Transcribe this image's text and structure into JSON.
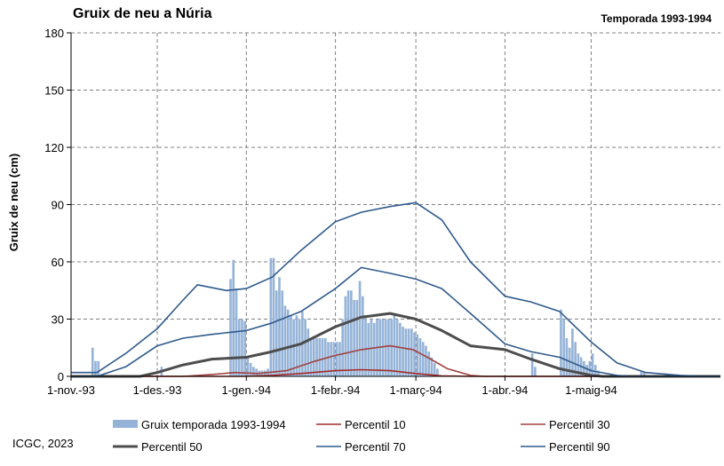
{
  "title": "Gruix de neu a Núria",
  "subtitle": "Temporada 1993-1994",
  "credit": "ICGC, 2023",
  "colors": {
    "bars": "#95b3d7",
    "p10": "#a52a2a",
    "p30": "#a0413f",
    "p50": "#4d4d4d",
    "p70": "#2f5a8c",
    "p90": "#2f5a8c",
    "grid": "#808080"
  },
  "chart_data": {
    "type": "bar+line",
    "ylabel": "Gruix de neu (cm)",
    "ylim": [
      0,
      180
    ],
    "yticks": [
      0,
      30,
      60,
      90,
      120,
      150,
      180
    ],
    "x_range_days": [
      "1993-11-01",
      "1994-06-15"
    ],
    "xticks": [
      {
        "date": "1993-11-01",
        "label": "1-nov.-93"
      },
      {
        "date": "1993-12-01",
        "label": "1-des.-93"
      },
      {
        "date": "1994-01-01",
        "label": "1-gen.-94"
      },
      {
        "date": "1994-02-01",
        "label": "1-febr.-94"
      },
      {
        "date": "1994-03-01",
        "label": "1-març-94"
      },
      {
        "date": "1994-04-01",
        "label": "1-abr.-94"
      },
      {
        "date": "1994-05-01",
        "label": "1-maig-94"
      }
    ],
    "grid": "vertical dashed at month starts",
    "legend_position": "bottom",
    "bars": {
      "name": "Gruix temporada 1993-1994",
      "points": [
        [
          "1993-11-08",
          15
        ],
        [
          "1993-11-09",
          8
        ],
        [
          "1993-11-10",
          8
        ],
        [
          "1993-12-02",
          5
        ],
        [
          "1993-12-26",
          51
        ],
        [
          "1993-12-27",
          61
        ],
        [
          "1993-12-28",
          46
        ],
        [
          "1993-12-29",
          30
        ],
        [
          "1993-12-30",
          30
        ],
        [
          "1993-12-31",
          29
        ],
        [
          "1994-01-01",
          10
        ],
        [
          "1994-01-02",
          7
        ],
        [
          "1994-01-03",
          5
        ],
        [
          "1994-01-04",
          4
        ],
        [
          "1994-01-05",
          3
        ],
        [
          "1994-01-06",
          3
        ],
        [
          "1994-01-07",
          3
        ],
        [
          "1994-01-08",
          4
        ],
        [
          "1994-01-09",
          62
        ],
        [
          "1994-01-10",
          62
        ],
        [
          "1994-01-11",
          45
        ],
        [
          "1994-01-12",
          52
        ],
        [
          "1994-01-13",
          45
        ],
        [
          "1994-01-14",
          37
        ],
        [
          "1994-01-15",
          35
        ],
        [
          "1994-01-16",
          32
        ],
        [
          "1994-01-17",
          30
        ],
        [
          "1994-01-18",
          32
        ],
        [
          "1994-01-19",
          30
        ],
        [
          "1994-01-20",
          34
        ],
        [
          "1994-01-21",
          30
        ],
        [
          "1994-01-22",
          25
        ],
        [
          "1994-01-23",
          20
        ],
        [
          "1994-01-24",
          20
        ],
        [
          "1994-01-25",
          20
        ],
        [
          "1994-01-26",
          20
        ],
        [
          "1994-01-27",
          20
        ],
        [
          "1994-01-28",
          20
        ],
        [
          "1994-01-29",
          18
        ],
        [
          "1994-01-30",
          18
        ],
        [
          "1994-01-31",
          18
        ],
        [
          "1994-02-01",
          18
        ],
        [
          "1994-02-02",
          18
        ],
        [
          "1994-02-03",
          30
        ],
        [
          "1994-02-04",
          42
        ],
        [
          "1994-02-05",
          45
        ],
        [
          "1994-02-06",
          45
        ],
        [
          "1994-02-07",
          40
        ],
        [
          "1994-02-08",
          40
        ],
        [
          "1994-02-09",
          50
        ],
        [
          "1994-02-10",
          42
        ],
        [
          "1994-02-11",
          32
        ],
        [
          "1994-02-12",
          28
        ],
        [
          "1994-02-13",
          30
        ],
        [
          "1994-02-14",
          28
        ],
        [
          "1994-02-15",
          30
        ],
        [
          "1994-02-16",
          30
        ],
        [
          "1994-02-17",
          30
        ],
        [
          "1994-02-18",
          30
        ],
        [
          "1994-02-19",
          30
        ],
        [
          "1994-02-20",
          30
        ],
        [
          "1994-02-21",
          32
        ],
        [
          "1994-02-22",
          30
        ],
        [
          "1994-02-23",
          28
        ],
        [
          "1994-02-24",
          26
        ],
        [
          "1994-02-25",
          25
        ],
        [
          "1994-02-26",
          25
        ],
        [
          "1994-02-27",
          25
        ],
        [
          "1994-02-28",
          23
        ],
        [
          "1994-03-01",
          22
        ],
        [
          "1994-03-02",
          20
        ],
        [
          "1994-03-03",
          18
        ],
        [
          "1994-03-04",
          16
        ],
        [
          "1994-03-05",
          13
        ],
        [
          "1994-03-06",
          10
        ],
        [
          "1994-03-07",
          7
        ],
        [
          "1994-03-08",
          4
        ],
        [
          "1994-04-10",
          12
        ],
        [
          "1994-04-11",
          5
        ],
        [
          "1994-04-20",
          35
        ],
        [
          "1994-04-21",
          30
        ],
        [
          "1994-04-22",
          20
        ],
        [
          "1994-04-23",
          15
        ],
        [
          "1994-04-24",
          25
        ],
        [
          "1994-04-25",
          18
        ],
        [
          "1994-04-26",
          12
        ],
        [
          "1994-04-27",
          10
        ],
        [
          "1994-04-28",
          8
        ],
        [
          "1994-04-29",
          6
        ],
        [
          "1994-04-30",
          8
        ],
        [
          "1994-05-01",
          12
        ],
        [
          "1994-05-02",
          6
        ],
        [
          "1994-05-03",
          3
        ],
        [
          "1994-05-18",
          3
        ],
        [
          "1994-05-19",
          2
        ]
      ]
    },
    "series": [
      {
        "name": "Percentil 10",
        "points": [
          [
            "1993-11-01",
            0
          ],
          [
            "1993-12-31",
            0
          ],
          [
            "1994-01-10",
            0.5
          ],
          [
            "1994-01-20",
            1.5
          ],
          [
            "1994-02-01",
            3
          ],
          [
            "1994-02-10",
            3.5
          ],
          [
            "1994-02-20",
            3
          ],
          [
            "1994-03-01",
            1.5
          ],
          [
            "1994-03-10",
            0.3
          ],
          [
            "1994-03-20",
            0
          ],
          [
            "1994-06-15",
            0
          ]
        ]
      },
      {
        "name": "Percentil 30",
        "points": [
          [
            "1993-11-01",
            0
          ],
          [
            "1993-12-10",
            0
          ],
          [
            "1993-12-20",
            1
          ],
          [
            "1993-12-28",
            2
          ],
          [
            "1994-01-05",
            1.5
          ],
          [
            "1994-01-15",
            3
          ],
          [
            "1994-01-25",
            8
          ],
          [
            "1994-02-01",
            11
          ],
          [
            "1994-02-10",
            14
          ],
          [
            "1994-02-20",
            16
          ],
          [
            "1994-02-28",
            14
          ],
          [
            "1994-03-05",
            10
          ],
          [
            "1994-03-12",
            4
          ],
          [
            "1994-03-20",
            0.5
          ],
          [
            "1994-03-25",
            0
          ],
          [
            "1994-06-15",
            0
          ]
        ]
      },
      {
        "name": "Percentil 50",
        "points": [
          [
            "1993-11-01",
            0
          ],
          [
            "1993-11-25",
            0
          ],
          [
            "1993-12-01",
            2
          ],
          [
            "1993-12-10",
            6
          ],
          [
            "1993-12-20",
            9
          ],
          [
            "1994-01-01",
            10
          ],
          [
            "1994-01-10",
            13
          ],
          [
            "1994-01-20",
            17
          ],
          [
            "1994-02-01",
            26
          ],
          [
            "1994-02-10",
            31
          ],
          [
            "1994-02-20",
            33
          ],
          [
            "1994-03-01",
            30
          ],
          [
            "1994-03-10",
            24
          ],
          [
            "1994-03-20",
            16
          ],
          [
            "1994-04-01",
            14
          ],
          [
            "1994-04-10",
            9
          ],
          [
            "1994-04-20",
            4
          ],
          [
            "1994-05-01",
            0.5
          ],
          [
            "1994-05-05",
            0
          ],
          [
            "1994-06-15",
            0
          ]
        ]
      },
      {
        "name": "Percentil 70",
        "points": [
          [
            "1993-11-01",
            0
          ],
          [
            "1993-11-10",
            0
          ],
          [
            "1993-11-20",
            5
          ],
          [
            "1993-12-01",
            16
          ],
          [
            "1993-12-10",
            20
          ],
          [
            "1993-12-20",
            22
          ],
          [
            "1994-01-01",
            24
          ],
          [
            "1994-01-10",
            28
          ],
          [
            "1994-01-20",
            34
          ],
          [
            "1994-02-01",
            46
          ],
          [
            "1994-02-10",
            57
          ],
          [
            "1994-02-20",
            54
          ],
          [
            "1994-03-01",
            51
          ],
          [
            "1994-03-10",
            46
          ],
          [
            "1994-03-20",
            33
          ],
          [
            "1994-04-01",
            17
          ],
          [
            "1994-04-10",
            13
          ],
          [
            "1994-04-20",
            10
          ],
          [
            "1994-05-01",
            3
          ],
          [
            "1994-05-10",
            0.5
          ],
          [
            "1994-05-15",
            0
          ],
          [
            "1994-06-15",
            0
          ]
        ]
      },
      {
        "name": "Percentil 90",
        "points": [
          [
            "1993-11-01",
            2
          ],
          [
            "1993-11-10",
            2
          ],
          [
            "1993-11-20",
            12
          ],
          [
            "1993-12-01",
            25
          ],
          [
            "1993-12-10",
            40
          ],
          [
            "1993-12-15",
            48
          ],
          [
            "1993-12-25",
            45
          ],
          [
            "1994-01-01",
            46
          ],
          [
            "1994-01-10",
            52
          ],
          [
            "1994-01-20",
            66
          ],
          [
            "1994-02-01",
            81
          ],
          [
            "1994-02-10",
            86
          ],
          [
            "1994-02-20",
            89
          ],
          [
            "1994-03-01",
            91
          ],
          [
            "1994-03-10",
            82
          ],
          [
            "1994-03-20",
            60
          ],
          [
            "1994-04-01",
            42
          ],
          [
            "1994-04-10",
            39
          ],
          [
            "1994-04-20",
            34
          ],
          [
            "1994-05-01",
            18
          ],
          [
            "1994-05-10",
            7
          ],
          [
            "1994-05-20",
            2
          ],
          [
            "1994-06-01",
            0.5
          ],
          [
            "1994-06-10",
            0
          ],
          [
            "1994-06-15",
            0
          ]
        ]
      }
    ]
  }
}
